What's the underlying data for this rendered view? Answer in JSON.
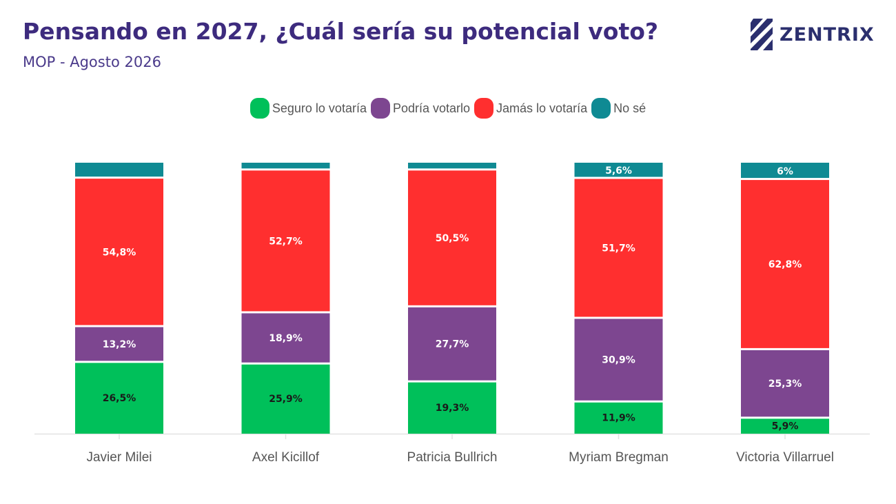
{
  "header": {
    "title": "Pensando en 2027, ¿Cuál sería su potencial voto?",
    "subtitle": "MOP - Agosto 2026",
    "logo_text": "ZENTRIX",
    "logo_icon": "zentrix-stripes-icon"
  },
  "chart_data": {
    "type": "bar",
    "stacked": true,
    "normalized_percent": true,
    "categories": [
      "Javier Milei",
      "Axel Kicillof",
      "Patricia Bullrich",
      "Myriam Bregman",
      "Victoria Villarruel"
    ],
    "series": [
      {
        "name": "Seguro lo votaría",
        "color": "#00c05a",
        "values": [
          26.5,
          25.9,
          19.3,
          11.9,
          5.9
        ],
        "labels": [
          "26,5%",
          "25,9%",
          "19,3%",
          "11,9%",
          "5,9%"
        ],
        "label_color": "#1a1a1a"
      },
      {
        "name": "Podría votarlo",
        "color": "#7d4690",
        "values": [
          13.2,
          18.9,
          27.7,
          30.9,
          25.3
        ],
        "labels": [
          "13,2%",
          "18,9%",
          "27,7%",
          "30,9%",
          "25,3%"
        ],
        "label_color": "#ffffff"
      },
      {
        "name": "Jamás lo votaría",
        "color": "#ff2f2f",
        "values": [
          54.8,
          52.7,
          50.5,
          51.7,
          62.8
        ],
        "labels": [
          "54,8%",
          "52,7%",
          "50,5%",
          "51,7%",
          "62,8%"
        ],
        "label_color": "#ffffff"
      },
      {
        "name": "No sé",
        "color": "#0f8a93",
        "values": [
          5.5,
          2.5,
          2.5,
          5.6,
          6.0
        ],
        "labels": [
          "",
          "",
          "",
          "5,6%",
          "6%"
        ],
        "label_color": "#ffffff"
      }
    ],
    "legend_position": "top-center",
    "grid": false
  }
}
